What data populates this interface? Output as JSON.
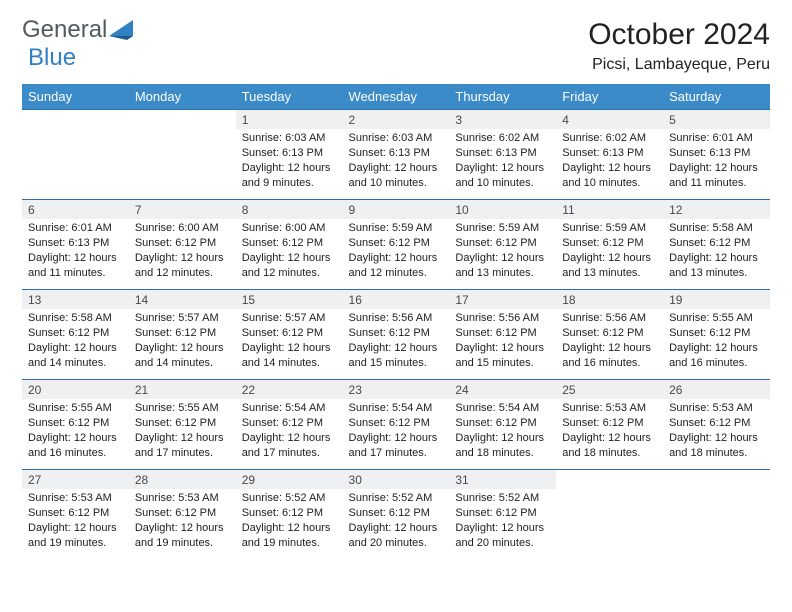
{
  "logo": {
    "word1": "General",
    "word2": "Blue"
  },
  "title": "October 2024",
  "location": "Picsi, Lambayeque, Peru",
  "colors": {
    "header_bg": "#3b8bc8",
    "header_text": "#ffffff",
    "daynum_bg": "#eef0f2",
    "row_border": "#2e6fa8",
    "logo_gray": "#525a60",
    "logo_blue": "#2f81c4"
  },
  "day_headers": [
    "Sunday",
    "Monday",
    "Tuesday",
    "Wednesday",
    "Thursday",
    "Friday",
    "Saturday"
  ],
  "weeks": [
    [
      {
        "n": "",
        "sr": "",
        "ss": "",
        "dl": ""
      },
      {
        "n": "",
        "sr": "",
        "ss": "",
        "dl": ""
      },
      {
        "n": "1",
        "sr": "Sunrise: 6:03 AM",
        "ss": "Sunset: 6:13 PM",
        "dl": "Daylight: 12 hours and 9 minutes."
      },
      {
        "n": "2",
        "sr": "Sunrise: 6:03 AM",
        "ss": "Sunset: 6:13 PM",
        "dl": "Daylight: 12 hours and 10 minutes."
      },
      {
        "n": "3",
        "sr": "Sunrise: 6:02 AM",
        "ss": "Sunset: 6:13 PM",
        "dl": "Daylight: 12 hours and 10 minutes."
      },
      {
        "n": "4",
        "sr": "Sunrise: 6:02 AM",
        "ss": "Sunset: 6:13 PM",
        "dl": "Daylight: 12 hours and 10 minutes."
      },
      {
        "n": "5",
        "sr": "Sunrise: 6:01 AM",
        "ss": "Sunset: 6:13 PM",
        "dl": "Daylight: 12 hours and 11 minutes."
      }
    ],
    [
      {
        "n": "6",
        "sr": "Sunrise: 6:01 AM",
        "ss": "Sunset: 6:13 PM",
        "dl": "Daylight: 12 hours and 11 minutes."
      },
      {
        "n": "7",
        "sr": "Sunrise: 6:00 AM",
        "ss": "Sunset: 6:12 PM",
        "dl": "Daylight: 12 hours and 12 minutes."
      },
      {
        "n": "8",
        "sr": "Sunrise: 6:00 AM",
        "ss": "Sunset: 6:12 PM",
        "dl": "Daylight: 12 hours and 12 minutes."
      },
      {
        "n": "9",
        "sr": "Sunrise: 5:59 AM",
        "ss": "Sunset: 6:12 PM",
        "dl": "Daylight: 12 hours and 12 minutes."
      },
      {
        "n": "10",
        "sr": "Sunrise: 5:59 AM",
        "ss": "Sunset: 6:12 PM",
        "dl": "Daylight: 12 hours and 13 minutes."
      },
      {
        "n": "11",
        "sr": "Sunrise: 5:59 AM",
        "ss": "Sunset: 6:12 PM",
        "dl": "Daylight: 12 hours and 13 minutes."
      },
      {
        "n": "12",
        "sr": "Sunrise: 5:58 AM",
        "ss": "Sunset: 6:12 PM",
        "dl": "Daylight: 12 hours and 13 minutes."
      }
    ],
    [
      {
        "n": "13",
        "sr": "Sunrise: 5:58 AM",
        "ss": "Sunset: 6:12 PM",
        "dl": "Daylight: 12 hours and 14 minutes."
      },
      {
        "n": "14",
        "sr": "Sunrise: 5:57 AM",
        "ss": "Sunset: 6:12 PM",
        "dl": "Daylight: 12 hours and 14 minutes."
      },
      {
        "n": "15",
        "sr": "Sunrise: 5:57 AM",
        "ss": "Sunset: 6:12 PM",
        "dl": "Daylight: 12 hours and 14 minutes."
      },
      {
        "n": "16",
        "sr": "Sunrise: 5:56 AM",
        "ss": "Sunset: 6:12 PM",
        "dl": "Daylight: 12 hours and 15 minutes."
      },
      {
        "n": "17",
        "sr": "Sunrise: 5:56 AM",
        "ss": "Sunset: 6:12 PM",
        "dl": "Daylight: 12 hours and 15 minutes."
      },
      {
        "n": "18",
        "sr": "Sunrise: 5:56 AM",
        "ss": "Sunset: 6:12 PM",
        "dl": "Daylight: 12 hours and 16 minutes."
      },
      {
        "n": "19",
        "sr": "Sunrise: 5:55 AM",
        "ss": "Sunset: 6:12 PM",
        "dl": "Daylight: 12 hours and 16 minutes."
      }
    ],
    [
      {
        "n": "20",
        "sr": "Sunrise: 5:55 AM",
        "ss": "Sunset: 6:12 PM",
        "dl": "Daylight: 12 hours and 16 minutes."
      },
      {
        "n": "21",
        "sr": "Sunrise: 5:55 AM",
        "ss": "Sunset: 6:12 PM",
        "dl": "Daylight: 12 hours and 17 minutes."
      },
      {
        "n": "22",
        "sr": "Sunrise: 5:54 AM",
        "ss": "Sunset: 6:12 PM",
        "dl": "Daylight: 12 hours and 17 minutes."
      },
      {
        "n": "23",
        "sr": "Sunrise: 5:54 AM",
        "ss": "Sunset: 6:12 PM",
        "dl": "Daylight: 12 hours and 17 minutes."
      },
      {
        "n": "24",
        "sr": "Sunrise: 5:54 AM",
        "ss": "Sunset: 6:12 PM",
        "dl": "Daylight: 12 hours and 18 minutes."
      },
      {
        "n": "25",
        "sr": "Sunrise: 5:53 AM",
        "ss": "Sunset: 6:12 PM",
        "dl": "Daylight: 12 hours and 18 minutes."
      },
      {
        "n": "26",
        "sr": "Sunrise: 5:53 AM",
        "ss": "Sunset: 6:12 PM",
        "dl": "Daylight: 12 hours and 18 minutes."
      }
    ],
    [
      {
        "n": "27",
        "sr": "Sunrise: 5:53 AM",
        "ss": "Sunset: 6:12 PM",
        "dl": "Daylight: 12 hours and 19 minutes."
      },
      {
        "n": "28",
        "sr": "Sunrise: 5:53 AM",
        "ss": "Sunset: 6:12 PM",
        "dl": "Daylight: 12 hours and 19 minutes."
      },
      {
        "n": "29",
        "sr": "Sunrise: 5:52 AM",
        "ss": "Sunset: 6:12 PM",
        "dl": "Daylight: 12 hours and 19 minutes."
      },
      {
        "n": "30",
        "sr": "Sunrise: 5:52 AM",
        "ss": "Sunset: 6:12 PM",
        "dl": "Daylight: 12 hours and 20 minutes."
      },
      {
        "n": "31",
        "sr": "Sunrise: 5:52 AM",
        "ss": "Sunset: 6:12 PM",
        "dl": "Daylight: 12 hours and 20 minutes."
      },
      {
        "n": "",
        "sr": "",
        "ss": "",
        "dl": ""
      },
      {
        "n": "",
        "sr": "",
        "ss": "",
        "dl": ""
      }
    ]
  ]
}
